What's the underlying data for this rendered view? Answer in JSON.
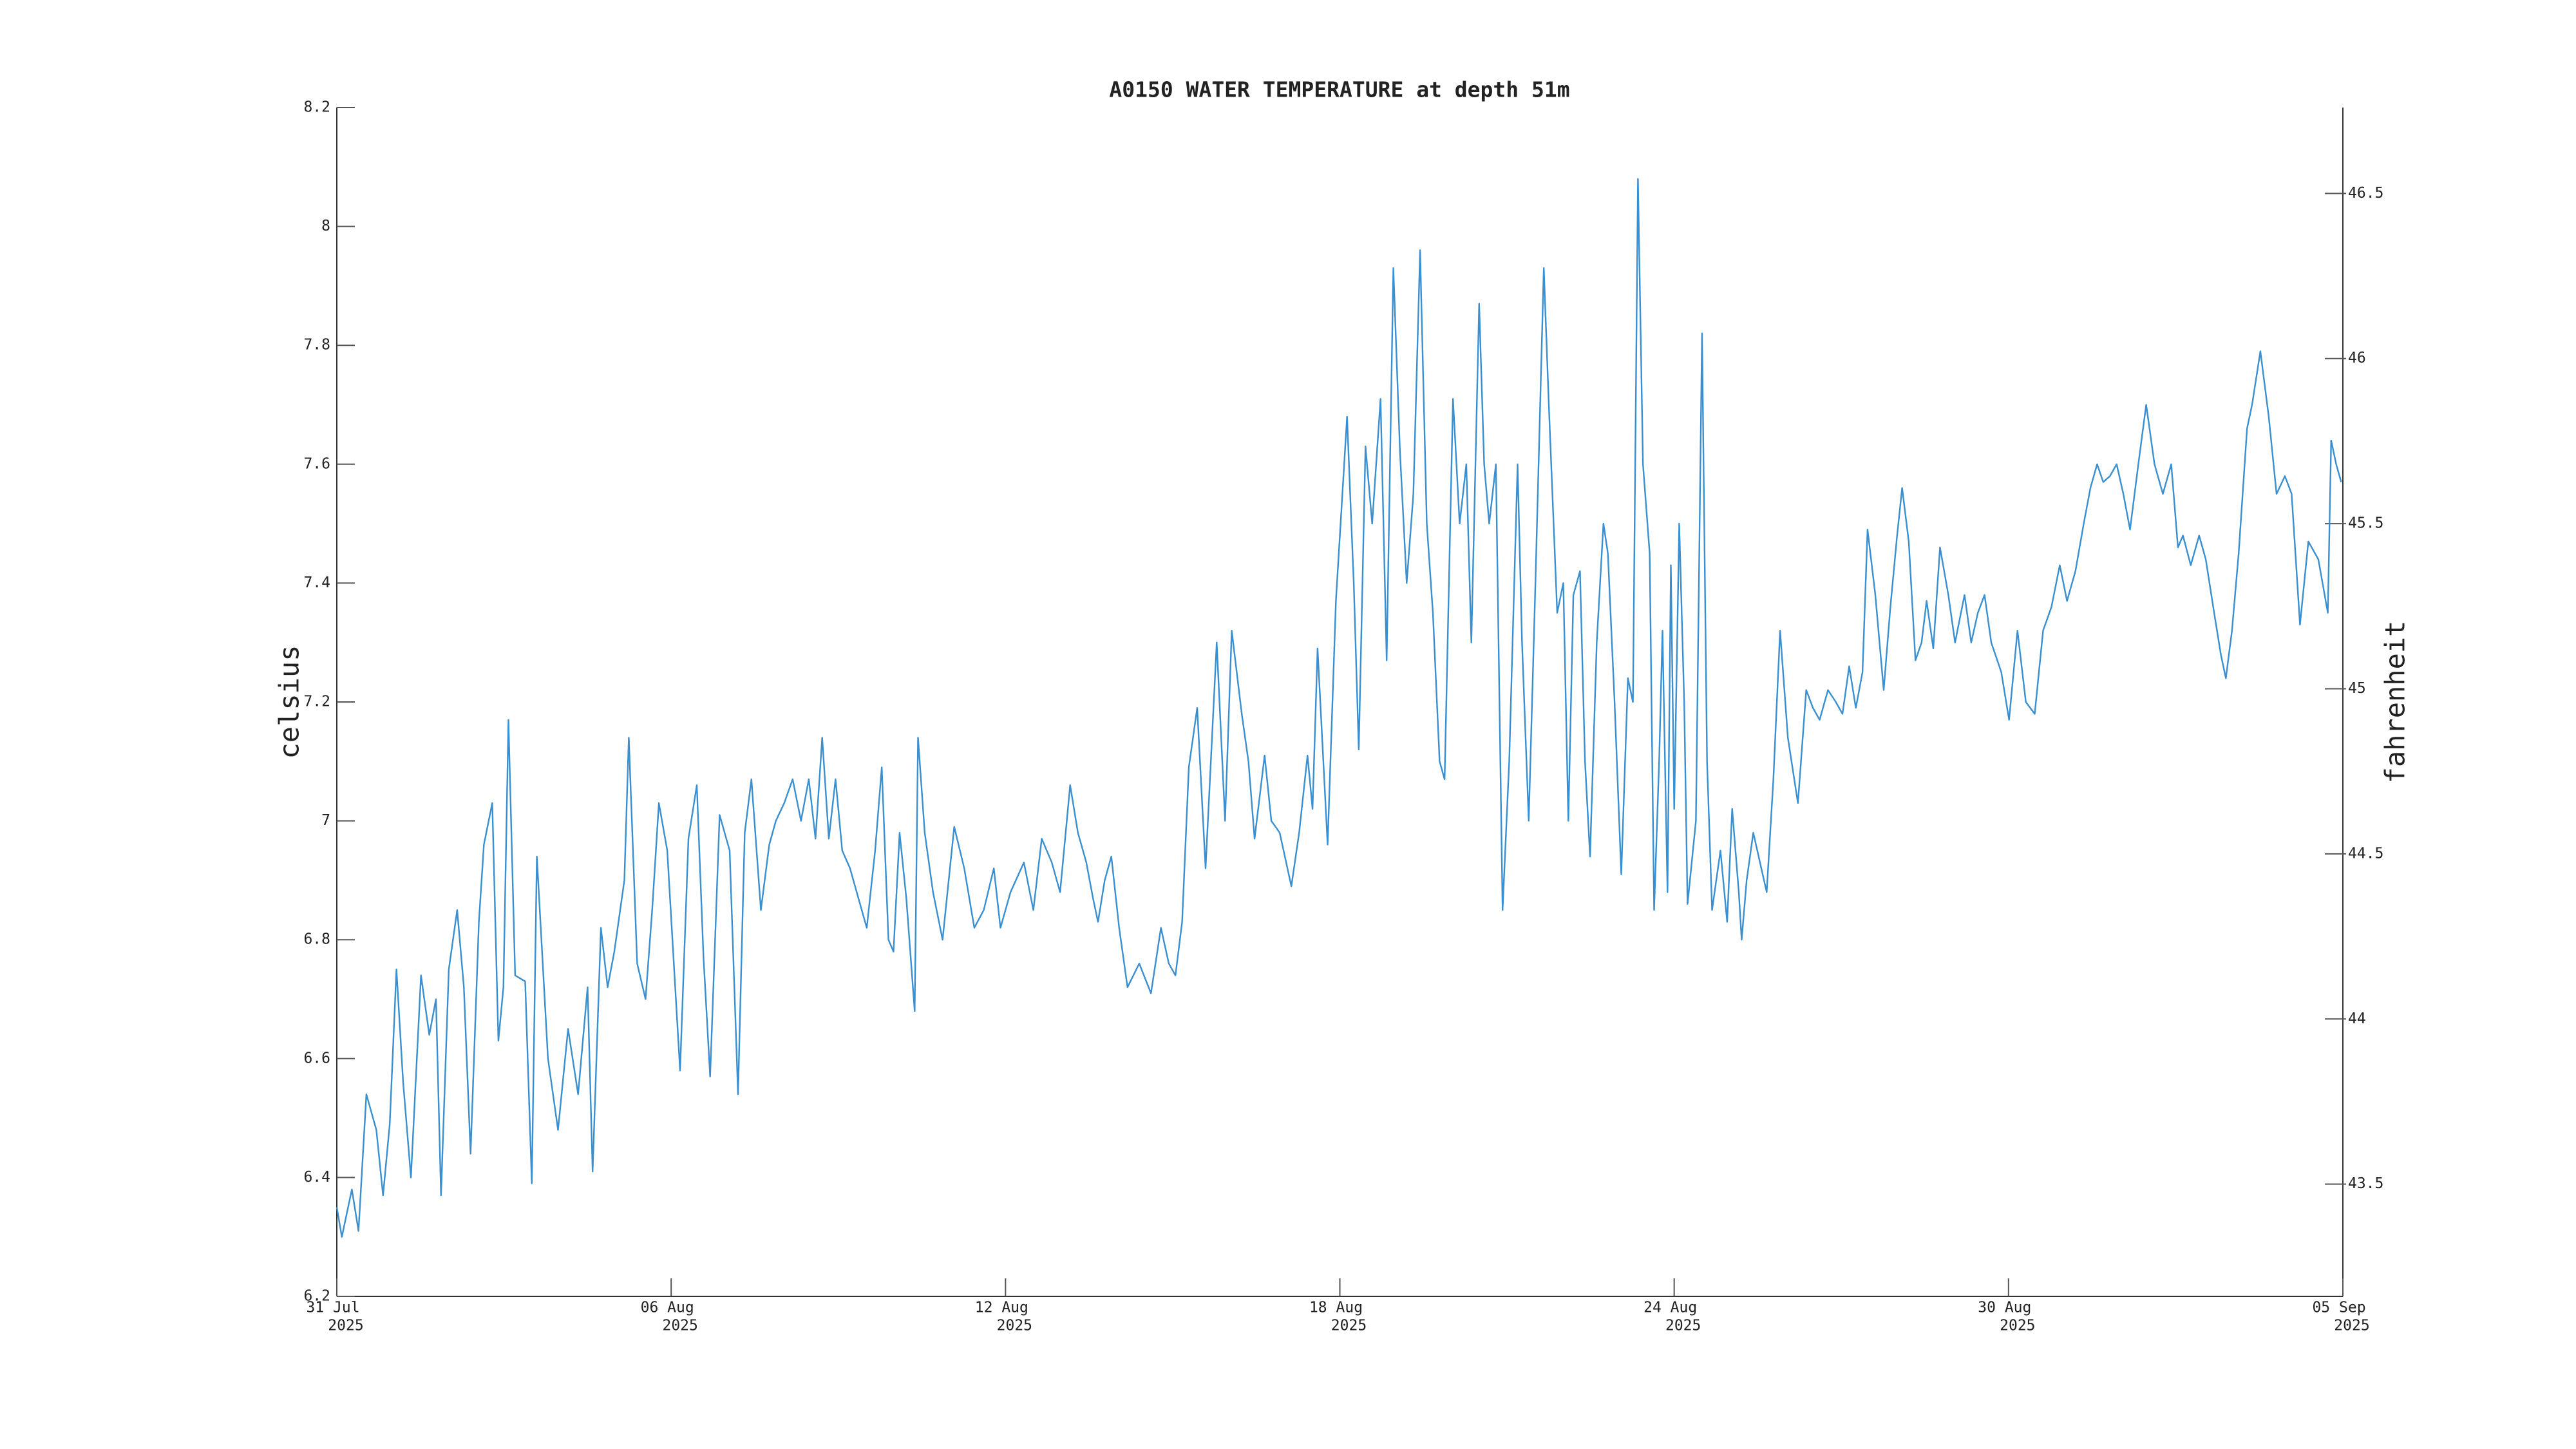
{
  "chart_data": {
    "type": "line",
    "title": "A0150 WATER TEMPERATURE at depth 51m",
    "ylabel": "celsius",
    "y2label": "fahrenheit",
    "color": "#3a8fd0",
    "xlim": [
      0,
      36
    ],
    "xticks": [
      {
        "value": 0,
        "label": [
          "31 Jul",
          "2025"
        ]
      },
      {
        "value": 6,
        "label": [
          "06 Aug",
          "2025"
        ]
      },
      {
        "value": 12,
        "label": [
          "12 Aug",
          "2025"
        ]
      },
      {
        "value": 18,
        "label": [
          "18 Aug",
          "2025"
        ]
      },
      {
        "value": 24,
        "label": [
          "24 Aug",
          "2025"
        ]
      },
      {
        "value": 30,
        "label": [
          "30 Aug",
          "2025"
        ]
      },
      {
        "value": 36,
        "label": [
          "05 Sep",
          "2025"
        ]
      }
    ],
    "ylim": [
      6.2,
      8.2
    ],
    "yticks": [
      6.2,
      6.4,
      6.6,
      6.8,
      7,
      7.2,
      7.4,
      7.6,
      7.8,
      8,
      8.2
    ],
    "y2lim": [
      43.16,
      46.76
    ],
    "y2ticks": [
      43.5,
      44,
      44.5,
      45,
      45.5,
      46,
      46.5
    ],
    "x": [
      0,
      0.09,
      0.27,
      0.39,
      0.53,
      0.71,
      0.83,
      0.95,
      1.07,
      1.19,
      1.33,
      1.51,
      1.66,
      1.78,
      1.87,
      2.01,
      2.16,
      2.28,
      2.4,
      2.55,
      2.64,
      2.79,
      2.9,
      2.99,
      3.08,
      3.2,
      3.38,
      3.5,
      3.59,
      3.79,
      3.97,
      4.15,
      4.33,
      4.5,
      4.59,
      4.74,
      4.86,
      4.98,
      5.16,
      5.24,
      5.39,
      5.54,
      5.66,
      5.78,
      5.93,
      6.16,
      6.31,
      6.46,
      6.58,
      6.7,
      6.87,
      7.05,
      7.2,
      7.32,
      7.44,
      7.61,
      7.76,
      7.88,
      8.03,
      8.18,
      8.33,
      8.47,
      8.59,
      8.71,
      8.83,
      8.95,
      9.07,
      9.21,
      9.36,
      9.51,
      9.66,
      9.78,
      9.9,
      9.99,
      10.1,
      10.22,
      10.37,
      10.43,
      10.55,
      10.7,
      10.87,
      11.08,
      11.26,
      11.44,
      11.61,
      11.79,
      11.91,
      12.09,
      12.33,
      12.5,
      12.65,
      12.83,
      12.98,
      13.16,
      13.3,
      13.45,
      13.57,
      13.66,
      13.78,
      13.9,
      14.04,
      14.19,
      14.4,
      14.61,
      14.79,
      14.93,
      15.05,
      15.17,
      15.29,
      15.44,
      15.59,
      15.79,
      15.94,
      16.06,
      16.24,
      16.36,
      16.47,
      16.65,
      16.77,
      16.92,
      17.13,
      17.27,
      17.42,
      17.51,
      17.6,
      17.78,
      17.93,
      18.13,
      18.25,
      18.34,
      18.46,
      18.58,
      18.73,
      18.84,
      18.96,
      19.08,
      19.2,
      19.32,
      19.44,
      19.56,
      19.67,
      19.79,
      19.88,
      20.03,
      20.15,
      20.27,
      20.36,
      20.5,
      20.59,
      20.68,
      20.8,
      20.92,
      21.04,
      21.19,
      21.27,
      21.39,
      21.51,
      21.66,
      21.75,
      21.9,
      22.01,
      22.1,
      22.19,
      22.31,
      22.4,
      22.49,
      22.61,
      22.73,
      22.81,
      22.93,
      23.05,
      23.17,
      23.26,
      23.35,
      23.44,
      23.56,
      23.64,
      23.73,
      23.79,
      23.88,
      23.94,
      24.0,
      24.09,
      24.18,
      24.24,
      24.39,
      24.5,
      24.59,
      24.68,
      24.83,
      24.95,
      25.04,
      25.16,
      25.21,
      25.3,
      25.42,
      25.54,
      25.66,
      25.78,
      25.9,
      26.04,
      26.22,
      26.37,
      26.49,
      26.61,
      26.76,
      26.9,
      27.02,
      27.14,
      27.26,
      27.38,
      27.47,
      27.61,
      27.76,
      27.88,
      28.0,
      28.09,
      28.21,
      28.33,
      28.44,
      28.53,
      28.65,
      28.77,
      28.92,
      29.04,
      29.21,
      29.33,
      29.45,
      29.57,
      29.69,
      29.87,
      30.01,
      30.16,
      30.31,
      30.47,
      30.62,
      30.77,
      30.92,
      31.05,
      31.2,
      31.35,
      31.47,
      31.59,
      31.7,
      31.82,
      31.94,
      32.06,
      32.18,
      32.33,
      32.47,
      32.62,
      32.77,
      32.92,
      33.04,
      33.13,
      33.27,
      33.42,
      33.54,
      33.69,
      33.81,
      33.9,
      34.01,
      34.13,
      34.28,
      34.37,
      34.52,
      34.67,
      34.81,
      34.96,
      35.08,
      35.23,
      35.38,
      35.56,
      35.73,
      35.79,
      35.88,
      35.97
    ],
    "values": [
      6.35,
      6.3,
      6.38,
      6.31,
      6.54,
      6.48,
      6.37,
      6.49,
      6.75,
      6.56,
      6.4,
      6.74,
      6.64,
      6.7,
      6.37,
      6.75,
      6.85,
      6.72,
      6.44,
      6.83,
      6.96,
      7.03,
      6.63,
      6.72,
      7.17,
      6.74,
      6.73,
      6.39,
      6.94,
      6.6,
      6.48,
      6.65,
      6.54,
      6.72,
      6.41,
      6.82,
      6.72,
      6.78,
      6.9,
      7.14,
      6.76,
      6.7,
      6.85,
      7.03,
      6.95,
      6.58,
      6.97,
      7.06,
      6.77,
      6.57,
      7.01,
      6.95,
      6.54,
      6.98,
      7.07,
      6.85,
      6.96,
      7.0,
      7.03,
      7.07,
      7.0,
      7.07,
      6.97,
      7.14,
      6.97,
      7.07,
      6.95,
      6.92,
      6.87,
      6.82,
      6.95,
      7.09,
      6.8,
      6.78,
      6.98,
      6.87,
      6.68,
      7.14,
      6.98,
      6.88,
      6.8,
      6.99,
      6.92,
      6.82,
      6.85,
      6.92,
      6.82,
      6.88,
      6.93,
      6.85,
      6.97,
      6.93,
      6.88,
      7.06,
      6.98,
      6.93,
      6.87,
      6.83,
      6.9,
      6.94,
      6.82,
      6.72,
      6.76,
      6.71,
      6.82,
      6.76,
      6.74,
      6.83,
      7.09,
      7.19,
      6.92,
      7.3,
      7.0,
      7.32,
      7.18,
      7.1,
      6.97,
      7.11,
      7.0,
      6.98,
      6.89,
      6.98,
      7.11,
      7.02,
      7.29,
      6.96,
      7.37,
      7.68,
      7.4,
      7.12,
      7.63,
      7.5,
      7.71,
      7.27,
      7.93,
      7.62,
      7.4,
      7.55,
      7.96,
      7.5,
      7.35,
      7.1,
      7.07,
      7.71,
      7.5,
      7.6,
      7.3,
      7.87,
      7.6,
      7.5,
      7.6,
      6.85,
      7.1,
      7.6,
      7.3,
      7.0,
      7.4,
      7.93,
      7.7,
      7.35,
      7.4,
      7.0,
      7.38,
      7.42,
      7.1,
      6.94,
      7.3,
      7.5,
      7.45,
      7.2,
      6.91,
      7.24,
      7.2,
      8.08,
      7.6,
      7.45,
      6.85,
      7.1,
      7.32,
      6.88,
      7.43,
      7.02,
      7.5,
      7.2,
      6.86,
      7.0,
      7.82,
      7.1,
      6.85,
      6.95,
      6.83,
      7.02,
      6.88,
      6.8,
      6.9,
      6.98,
      6.93,
      6.88,
      7.07,
      7.32,
      7.14,
      7.03,
      7.22,
      7.19,
      7.17,
      7.22,
      7.2,
      7.18,
      7.26,
      7.19,
      7.25,
      7.49,
      7.38,
      7.22,
      7.36,
      7.48,
      7.56,
      7.47,
      7.27,
      7.3,
      7.37,
      7.29,
      7.46,
      7.38,
      7.3,
      7.38,
      7.3,
      7.35,
      7.38,
      7.3,
      7.25,
      7.17,
      7.32,
      7.2,
      7.18,
      7.32,
      7.36,
      7.43,
      7.37,
      7.42,
      7.5,
      7.56,
      7.6,
      7.57,
      7.58,
      7.6,
      7.55,
      7.49,
      7.6,
      7.7,
      7.6,
      7.55,
      7.6,
      7.46,
      7.48,
      7.43,
      7.48,
      7.44,
      7.35,
      7.28,
      7.24,
      7.32,
      7.45,
      7.66,
      7.7,
      7.79,
      7.68,
      7.55,
      7.58,
      7.55,
      7.33,
      7.47,
      7.44,
      7.35,
      7.64,
      7.6,
      7.57
    ]
  }
}
